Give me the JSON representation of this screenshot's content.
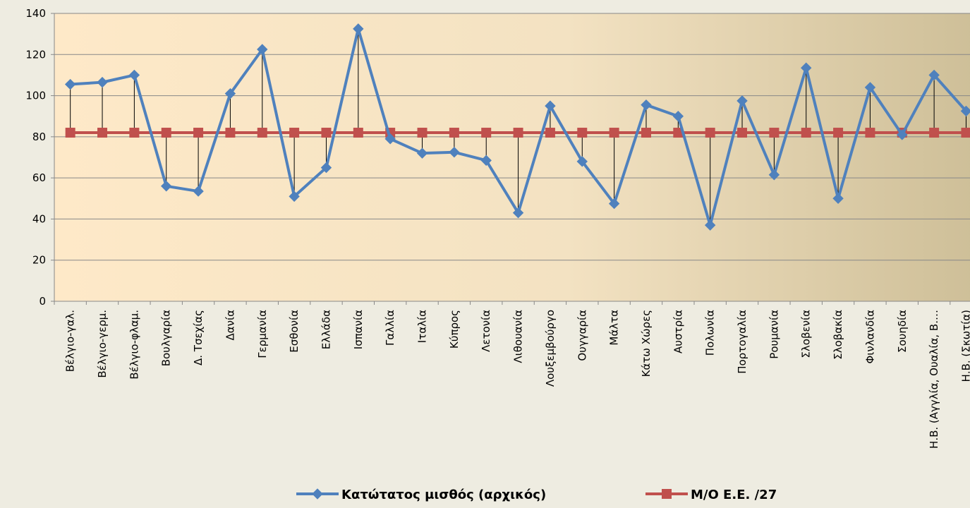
{
  "chart_data": {
    "type": "line",
    "categories": [
      "Βέλγιο-γαλ.",
      "Βέλγιο-γερμ.",
      "Βέλγιο-φλαμ.",
      "Βουλγαρία",
      "Δ. Τσεχίας",
      "Δανία",
      "Γερμανία",
      "Εσθονία",
      "Ελλάδα",
      "Ισπανία",
      "Γαλλία",
      "Ιταλία",
      "Κύπρος",
      "Λετονία",
      "Λιθουανία",
      "Λουξεμβούργο",
      "Ουγγαρία",
      "Μάλτα",
      "Κάτω Χώρες",
      "Αυστρία",
      "Πολωνία",
      "Πορτογαλία",
      "Ρουμανία",
      "Σλοβενία",
      "Σλοβακία",
      "Φινλανδία",
      "Σουηδία",
      "Η.Β. (Αγγλία, Ουαλία, Β.…",
      "Η.Β. (Σκωτία)"
    ],
    "series": [
      {
        "name": "Κατώτατος μισθός (αρχικός)",
        "color": "#4f81bd",
        "marker": "diamond",
        "values": [
          105.5,
          106.5,
          110,
          56,
          53.5,
          101,
          122.5,
          51,
          65,
          132.5,
          79,
          72,
          72.5,
          68.5,
          43,
          95,
          68,
          47.5,
          95.5,
          90,
          37,
          97.5,
          61.5,
          113.5,
          50,
          104,
          81,
          110,
          92.5
        ]
      },
      {
        "name": "Μ/Ο Ε.Ε. /27",
        "color": "#c0504d",
        "marker": "square",
        "values": [
          82,
          82,
          82,
          82,
          82,
          82,
          82,
          82,
          82,
          82,
          82,
          82,
          82,
          82,
          82,
          82,
          82,
          82,
          82,
          82,
          82,
          82,
          82,
          82,
          82,
          82,
          82,
          82,
          82
        ]
      }
    ],
    "ylim": [
      0,
      140
    ],
    "yticks": [
      0,
      20,
      40,
      60,
      80,
      100,
      120,
      140
    ],
    "grid": true,
    "drop_lines": true,
    "legend": "bottom"
  }
}
